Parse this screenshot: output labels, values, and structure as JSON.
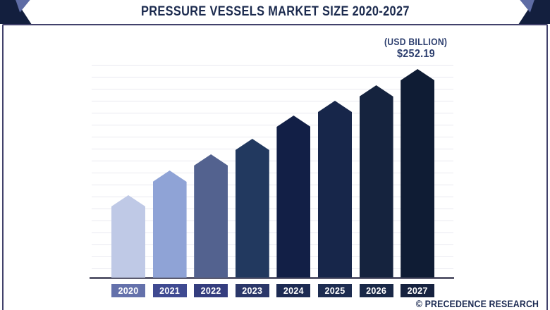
{
  "header": {
    "title": "PRESSURE VESSELS MARKET SIZE 2020-2027"
  },
  "annotation": {
    "unit_label": "(USD BILLION)",
    "value_label": "$252.19"
  },
  "footer": {
    "attribution": "© PRECEDENCE RESEARCH"
  },
  "colors": {
    "title_text": "#1b2a4e",
    "annotation_text": "#2c3e6e",
    "attribution_text": "#1b2a52",
    "frame_border": "#41416b",
    "grid_line": "#e9e9f0",
    "axis_line": "#5a5a6e",
    "corner_navy": "#131f3e",
    "corner_light": "#5e6ca5",
    "year_label_text": "#ffffff"
  },
  "chart_data": {
    "type": "bar",
    "title": "PRESSURE VESSELS MARKET SIZE 2020-2027",
    "unit": "USD Billion",
    "categories": [
      "2020",
      "2021",
      "2022",
      "2023",
      "2024",
      "2025",
      "2026",
      "2027"
    ],
    "values": [
      99.7,
      129.5,
      149.1,
      167.9,
      196.0,
      213.9,
      232.6,
      252.19
    ],
    "labeled_points": [
      {
        "category": "2027",
        "label": "$252.19"
      }
    ],
    "xlabel": "",
    "ylabel": "",
    "ylim": [
      0,
      260
    ],
    "grid": "horizontal",
    "legend": "none",
    "bar_shape": "pentagon-arrow-top",
    "bar_colors": [
      "#bfc9e6",
      "#8fa3d6",
      "#53628f",
      "#22395f",
      "#121f46",
      "#17264a",
      "#15233e",
      "#0f1c34"
    ],
    "year_box_colors": [
      "#6471ab",
      "#3f4a91",
      "#343d7e",
      "#2b3769",
      "#1c2a52",
      "#1d2c50",
      "#192847",
      "#16223f"
    ]
  }
}
